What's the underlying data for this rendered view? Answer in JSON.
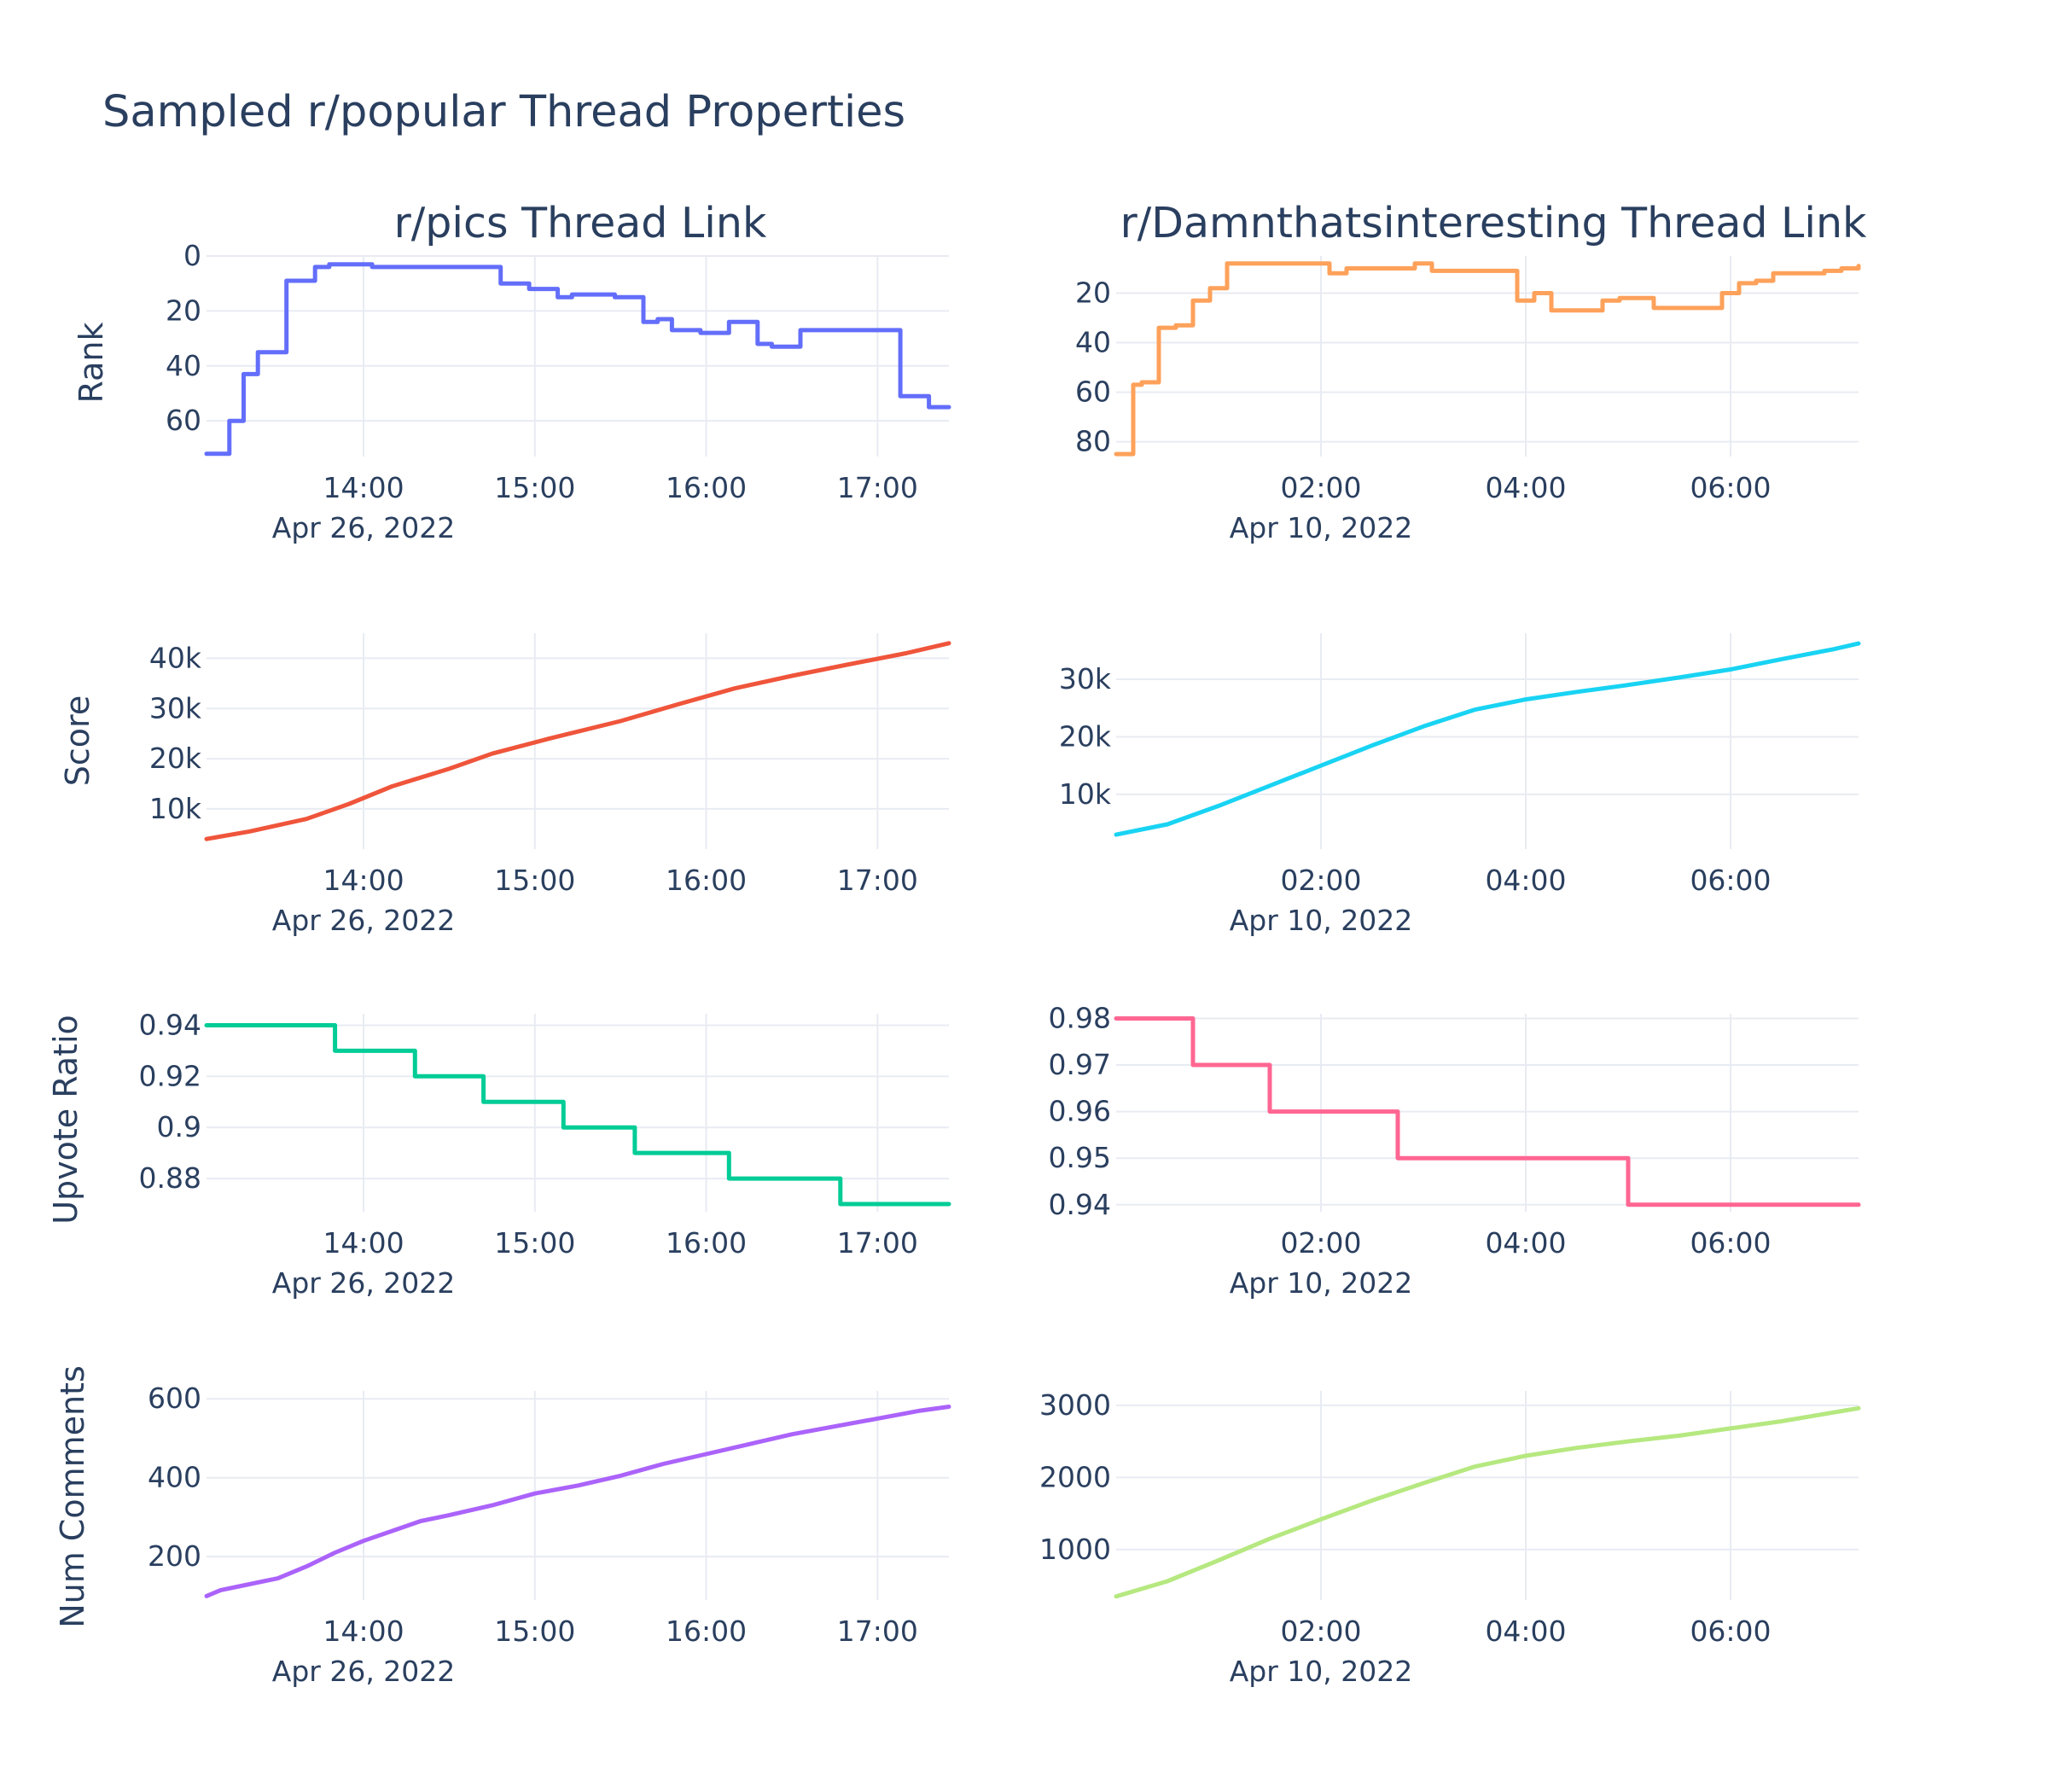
{
  "title": "Sampled r/popular Thread Properties",
  "columns": [
    {
      "subplot_title": "r/pics Thread Link",
      "date_label": "Apr 26, 2022"
    },
    {
      "subplot_title": "r/Damnthatsinteresting Thread Link",
      "date_label": "Apr 10, 2022"
    }
  ],
  "row_labels": [
    "Rank",
    "Score",
    "Upvote Ratio",
    "Num Comments"
  ],
  "chart_data": [
    {
      "type": "line",
      "row": 0,
      "col": 0,
      "title": "r/pics Thread Link",
      "ylabel": "Rank",
      "y_reversed": true,
      "color": "#636efa",
      "xlim": [
        "13:05",
        "17:25"
      ],
      "ylim": [
        0,
        73
      ],
      "xticks": [
        "14:00",
        "15:00",
        "16:00",
        "17:00"
      ],
      "yticks": [
        {
          "v": 0,
          "label": "0"
        },
        {
          "v": 20,
          "label": "20"
        },
        {
          "v": 40,
          "label": "40"
        },
        {
          "v": 60,
          "label": "60"
        }
      ],
      "step": true,
      "x": [
        "13:05",
        "13:08",
        "13:13",
        "13:18",
        "13:23",
        "13:28",
        "13:33",
        "13:38",
        "13:43",
        "13:48",
        "13:53",
        "13:58",
        "14:03",
        "14:08",
        "14:13",
        "14:18",
        "14:23",
        "14:28",
        "14:33",
        "14:38",
        "14:43",
        "14:48",
        "14:53",
        "14:58",
        "15:03",
        "15:08",
        "15:13",
        "15:18",
        "15:23",
        "15:28",
        "15:33",
        "15:38",
        "15:43",
        "15:48",
        "15:53",
        "15:58",
        "16:03",
        "16:08",
        "16:13",
        "16:18",
        "16:23",
        "16:28",
        "16:33",
        "16:38",
        "16:43",
        "16:48",
        "16:53",
        "16:58",
        "17:03",
        "17:08",
        "17:13",
        "17:18",
        "17:23",
        "17:25"
      ],
      "y": [
        72,
        72,
        60,
        43,
        35,
        35,
        9,
        9,
        4,
        3,
        3,
        3,
        4,
        4,
        4,
        4,
        4,
        4,
        4,
        4,
        4,
        10,
        10,
        12,
        12,
        15,
        14,
        14,
        14,
        15,
        15,
        24,
        23,
        27,
        27,
        28,
        28,
        24,
        24,
        32,
        33,
        33,
        27,
        27,
        27,
        27,
        27,
        27,
        27,
        51,
        51,
        55,
        55,
        55
      ]
    },
    {
      "type": "line",
      "row": 0,
      "col": 1,
      "title": "r/Damnthatsinteresting Thread Link",
      "ylabel": "",
      "y_reversed": true,
      "color": "#fea15a",
      "xlim": [
        "00:00",
        "07:15"
      ],
      "ylim": [
        5,
        86
      ],
      "xticks": [
        "02:00",
        "04:00",
        "06:00"
      ],
      "yticks": [
        {
          "v": 20,
          "label": "20"
        },
        {
          "v": 40,
          "label": "40"
        },
        {
          "v": 60,
          "label": "60"
        },
        {
          "v": 80,
          "label": "80"
        }
      ],
      "step": true,
      "x": [
        "00:00",
        "00:10",
        "00:15",
        "00:25",
        "00:35",
        "00:45",
        "00:55",
        "01:05",
        "01:15",
        "01:25",
        "01:35",
        "01:45",
        "01:55",
        "02:05",
        "02:15",
        "02:25",
        "02:35",
        "02:45",
        "02:55",
        "03:05",
        "03:15",
        "03:25",
        "03:35",
        "03:45",
        "03:55",
        "04:05",
        "04:15",
        "04:25",
        "04:35",
        "04:45",
        "04:55",
        "05:05",
        "05:15",
        "05:25",
        "05:35",
        "05:45",
        "05:55",
        "06:05",
        "06:15",
        "06:25",
        "06:35",
        "06:45",
        "06:55",
        "07:05",
        "07:15"
      ],
      "y": [
        85,
        57,
        56,
        34,
        33,
        23,
        18,
        8,
        8,
        8,
        8,
        8,
        8,
        12,
        10,
        10,
        10,
        10,
        8,
        11,
        11,
        11,
        11,
        11,
        23,
        20,
        27,
        27,
        27,
        23,
        22,
        22,
        26,
        26,
        26,
        26,
        20,
        16,
        15,
        12,
        12,
        12,
        11,
        10,
        9
      ]
    },
    {
      "type": "line",
      "row": 1,
      "col": 0,
      "title": "",
      "ylabel": "Score",
      "y_reversed": false,
      "color": "#ef553b",
      "xlim": [
        "13:05",
        "17:25"
      ],
      "ylim": [
        2000,
        45000
      ],
      "xticks": [
        "14:00",
        "15:00",
        "16:00",
        "17:00"
      ],
      "yticks": [
        {
          "v": 10000,
          "label": "10k"
        },
        {
          "v": 20000,
          "label": "20k"
        },
        {
          "v": 30000,
          "label": "30k"
        },
        {
          "v": 40000,
          "label": "40k"
        }
      ],
      "step": false,
      "x": [
        "13:05",
        "13:20",
        "13:40",
        "13:55",
        "14:10",
        "14:30",
        "14:45",
        "15:05",
        "15:30",
        "15:50",
        "16:10",
        "16:30",
        "16:50",
        "17:10",
        "17:25"
      ],
      "y": [
        4000,
        5500,
        8000,
        11000,
        14500,
        18000,
        21000,
        24000,
        27500,
        30800,
        34000,
        36500,
        38800,
        41000,
        43000
      ]
    },
    {
      "type": "line",
      "row": 1,
      "col": 1,
      "title": "",
      "ylabel": "",
      "y_reversed": false,
      "color": "#19d3f3",
      "xlim": [
        "00:00",
        "07:15"
      ],
      "ylim": [
        500,
        38000
      ],
      "xticks": [
        "02:00",
        "04:00",
        "06:00"
      ],
      "yticks": [
        {
          "v": 10000,
          "label": "10k"
        },
        {
          "v": 20000,
          "label": "20k"
        },
        {
          "v": 30000,
          "label": "30k"
        }
      ],
      "step": false,
      "x": [
        "00:00",
        "00:30",
        "01:00",
        "01:30",
        "02:00",
        "02:30",
        "03:00",
        "03:30",
        "04:00",
        "04:30",
        "05:00",
        "05:30",
        "06:00",
        "06:30",
        "07:00",
        "07:15"
      ],
      "y": [
        3000,
        4800,
        8000,
        11500,
        15000,
        18500,
        21800,
        24700,
        26500,
        27800,
        29000,
        30300,
        31700,
        33500,
        35200,
        36200
      ]
    },
    {
      "type": "line",
      "row": 2,
      "col": 0,
      "title": "",
      "ylabel": "Upvote Ratio",
      "y_reversed": false,
      "color": "#00cc96",
      "xlim": [
        "13:05",
        "17:25"
      ],
      "ylim": [
        0.867,
        0.9445
      ],
      "xticks": [
        "14:00",
        "15:00",
        "16:00",
        "17:00"
      ],
      "yticks": [
        {
          "v": 0.88,
          "label": "0.88"
        },
        {
          "v": 0.9,
          "label": "0.9"
        },
        {
          "v": 0.92,
          "label": "0.92"
        },
        {
          "v": 0.94,
          "label": "0.94"
        }
      ],
      "step": true,
      "x": [
        "13:05",
        "13:50",
        "14:18",
        "14:42",
        "15:10",
        "15:35",
        "16:08",
        "16:47",
        "17:25"
      ],
      "y": [
        0.94,
        0.93,
        0.92,
        0.91,
        0.9,
        0.89,
        0.88,
        0.87,
        0.87
      ]
    },
    {
      "type": "line",
      "row": 2,
      "col": 1,
      "title": "",
      "ylabel": "",
      "y_reversed": false,
      "color": "#ff6692",
      "xlim": [
        "00:00",
        "07:15"
      ],
      "ylim": [
        0.9385,
        0.981
      ],
      "xticks": [
        "02:00",
        "04:00",
        "06:00"
      ],
      "yticks": [
        {
          "v": 0.94,
          "label": "0.94"
        },
        {
          "v": 0.95,
          "label": "0.95"
        },
        {
          "v": 0.96,
          "label": "0.96"
        },
        {
          "v": 0.97,
          "label": "0.97"
        },
        {
          "v": 0.98,
          "label": "0.98"
        }
      ],
      "step": true,
      "x": [
        "00:00",
        "00:45",
        "01:30",
        "02:45",
        "05:00",
        "07:15"
      ],
      "y": [
        0.98,
        0.97,
        0.96,
        0.95,
        0.94,
        0.94
      ]
    },
    {
      "type": "line",
      "row": 3,
      "col": 0,
      "title": "",
      "ylabel": "Num Comments",
      "y_reversed": false,
      "color": "#ab63fa",
      "xlim": [
        "13:05",
        "17:25"
      ],
      "ylim": [
        90,
        620
      ],
      "xticks": [
        "14:00",
        "15:00",
        "16:00",
        "17:00"
      ],
      "yticks": [
        {
          "v": 200,
          "label": "200"
        },
        {
          "v": 400,
          "label": "400"
        },
        {
          "v": 600,
          "label": "600"
        }
      ],
      "step": false,
      "x": [
        "13:05",
        "13:10",
        "13:20",
        "13:30",
        "13:40",
        "13:50",
        "14:00",
        "14:10",
        "14:20",
        "14:30",
        "14:45",
        "15:00",
        "15:15",
        "15:30",
        "15:45",
        "16:00",
        "16:15",
        "16:30",
        "16:45",
        "17:00",
        "17:15",
        "17:25"
      ],
      "y": [
        100,
        115,
        130,
        145,
        175,
        210,
        240,
        265,
        290,
        305,
        330,
        360,
        380,
        405,
        435,
        460,
        485,
        510,
        530,
        550,
        570,
        580
      ]
    },
    {
      "type": "line",
      "row": 3,
      "col": 1,
      "title": "",
      "ylabel": "",
      "y_reversed": false,
      "color": "#b6e880",
      "xlim": [
        "00:00",
        "07:15"
      ],
      "ylim": [
        300,
        3200
      ],
      "xticks": [
        "02:00",
        "04:00",
        "06:00"
      ],
      "yticks": [
        {
          "v": 1000,
          "label": "1000"
        },
        {
          "v": 2000,
          "label": "2000"
        },
        {
          "v": 3000,
          "label": "3000"
        }
      ],
      "step": false,
      "x": [
        "00:00",
        "00:30",
        "01:00",
        "01:30",
        "02:00",
        "02:30",
        "03:00",
        "03:30",
        "04:00",
        "04:30",
        "05:00",
        "05:30",
        "06:00",
        "06:30",
        "07:00",
        "07:15"
      ],
      "y": [
        350,
        560,
        850,
        1150,
        1420,
        1680,
        1920,
        2150,
        2300,
        2410,
        2500,
        2580,
        2680,
        2780,
        2900,
        2960
      ]
    }
  ]
}
